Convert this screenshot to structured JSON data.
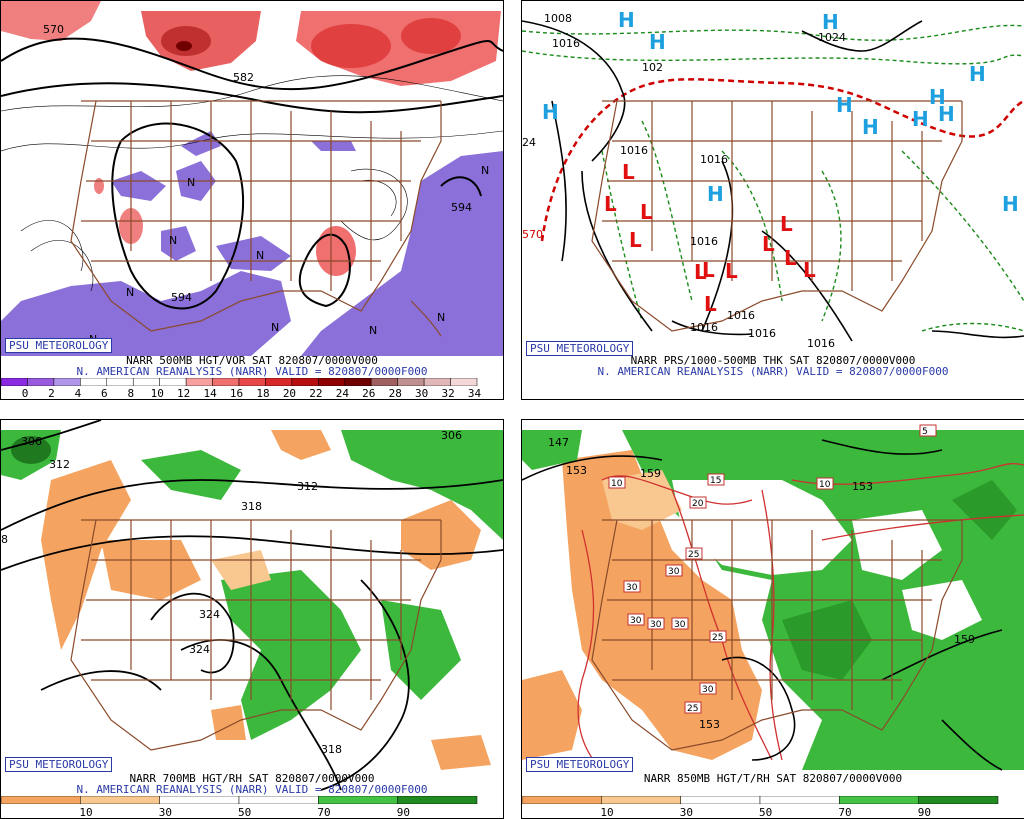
{
  "branding": "PSU METEOROLOGY",
  "panels": [
    {
      "id": "p500",
      "title": "NARR 500MB HGT/VOR SAT 820807/0000V000",
      "subtitle": "N. AMERICAN REANALYSIS (NARR) VALID = 820807/0000F000",
      "colorbar": {
        "labels": [
          "0",
          "2",
          "4",
          "6",
          "8",
          "10",
          "12",
          "14",
          "16",
          "18",
          "20",
          "22",
          "24",
          "26",
          "28",
          "30",
          "32",
          "34"
        ],
        "colors": [
          "#8a2be2",
          "#9a5ae0",
          "#b197ea",
          "#ffffff",
          "#ffffff",
          "#ffffff",
          "#ffffff",
          "#f8a0a0",
          "#f07070",
          "#e84848",
          "#d82828",
          "#b81010",
          "#900000",
          "#700000",
          "#a06060",
          "#c09090",
          "#e0b8b8",
          "#f4d8d8"
        ]
      },
      "contour_labels": [
        "570",
        "582",
        "594",
        "594",
        "594"
      ],
      "h_symbols": [],
      "l_symbols": []
    },
    {
      "id": "psfc",
      "title": "NARR PRS/1000-500MB THK SAT 820807/0000V000",
      "subtitle": "N. AMERICAN REANALYSIS (NARR) VALID = 820807/0000F000",
      "contour_labels": [
        "1008",
        "1016",
        "1024",
        "102",
        "1016",
        "1016",
        "1016",
        "1016",
        "1016",
        "1016",
        "1016",
        "570",
        "24"
      ],
      "h_symbols": [
        "H",
        "H",
        "H",
        "H",
        "H",
        "H",
        "H",
        "H",
        "H",
        "H",
        "H",
        "H"
      ],
      "l_symbols": [
        "L",
        "L",
        "L",
        "L",
        "L",
        "L",
        "L",
        "L",
        "L",
        "L",
        "L",
        "L"
      ]
    },
    {
      "id": "p700",
      "title": "NARR 700MB HGT/RH SAT 820807/0000V000",
      "subtitle": "N. AMERICAN REANALYSIS (NARR) VALID = 820807/0000F000",
      "colorbar": {
        "labels": [
          "10",
          "30",
          "50",
          "70",
          "90"
        ],
        "colors": [
          "#f4a460",
          "#f8c890",
          "#ffffff",
          "#ffffff",
          "#44c244",
          "#208a20"
        ]
      },
      "contour_labels": [
        "306",
        "312",
        "312",
        "318",
        "324",
        "324",
        "318",
        "306",
        "8"
      ]
    },
    {
      "id": "p850",
      "title": "NARR 850MB HGT/T/RH SAT 820807/0000V000",
      "subtitle": "",
      "colorbar": {
        "labels": [
          "10",
          "30",
          "50",
          "70",
          "90"
        ],
        "colors": [
          "#f4a460",
          "#f8c890",
          "#ffffff",
          "#ffffff",
          "#44c244",
          "#208a20"
        ]
      },
      "contour_labels": [
        "153",
        "159",
        "153",
        "159",
        "153",
        "147"
      ],
      "temp_labels": [
        "5",
        "10",
        "15",
        "10",
        "20",
        "25",
        "30",
        "30",
        "30",
        "30",
        "30",
        "25",
        "30",
        "25"
      ]
    }
  ]
}
